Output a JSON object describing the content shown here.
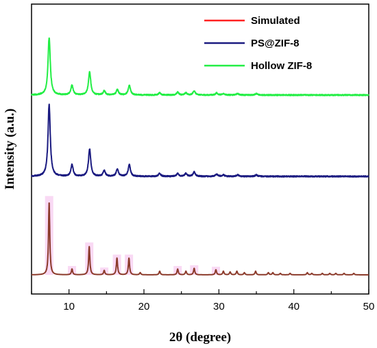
{
  "chart_data": {
    "type": "line",
    "title": "",
    "xlabel": "2θ (degree)",
    "ylabel": "Intensity (a.u.)",
    "xlim": [
      5,
      50
    ],
    "x_ticks": [
      10,
      20,
      30,
      40,
      50
    ],
    "x_tick_labels": [
      "10",
      "20",
      "30",
      "40",
      "50"
    ],
    "y_ticks_shown": false,
    "grid": false,
    "legend_position": "top-right",
    "series": [
      {
        "name": "Simulated",
        "color": "#ff2020",
        "line_color": "#8b3a2a",
        "fill_color": "#f7c9f0",
        "baseline": 0.0,
        "noise": 0.0,
        "peaks": [
          {
            "x": 7.35,
            "h": 1.0
          },
          {
            "x": 10.4,
            "h": 0.08
          },
          {
            "x": 12.7,
            "h": 0.39
          },
          {
            "x": 14.7,
            "h": 0.06
          },
          {
            "x": 16.4,
            "h": 0.23
          },
          {
            "x": 18.0,
            "h": 0.23
          },
          {
            "x": 19.5,
            "h": 0.03
          },
          {
            "x": 22.1,
            "h": 0.05
          },
          {
            "x": 24.5,
            "h": 0.08
          },
          {
            "x": 25.6,
            "h": 0.05
          },
          {
            "x": 26.7,
            "h": 0.09
          },
          {
            "x": 29.6,
            "h": 0.07
          },
          {
            "x": 30.6,
            "h": 0.05
          },
          {
            "x": 31.5,
            "h": 0.04
          },
          {
            "x": 32.4,
            "h": 0.05
          },
          {
            "x": 33.4,
            "h": 0.03
          },
          {
            "x": 34.9,
            "h": 0.05
          },
          {
            "x": 36.6,
            "h": 0.03
          },
          {
            "x": 37.2,
            "h": 0.03
          },
          {
            "x": 38.2,
            "h": 0.02
          },
          {
            "x": 39.5,
            "h": 0.02
          },
          {
            "x": 41.8,
            "h": 0.03
          },
          {
            "x": 42.4,
            "h": 0.02
          },
          {
            "x": 43.8,
            "h": 0.02
          },
          {
            "x": 44.8,
            "h": 0.02
          },
          {
            "x": 45.6,
            "h": 0.02
          },
          {
            "x": 46.7,
            "h": 0.02
          },
          {
            "x": 48.0,
            "h": 0.02
          }
        ]
      },
      {
        "name": "PS@ZIF-8",
        "color": "#1a1a80",
        "baseline": 0.0,
        "noise": 0.004,
        "peaks": [
          {
            "x": 7.35,
            "h": 0.5
          },
          {
            "x": 10.4,
            "h": 0.08
          },
          {
            "x": 12.75,
            "h": 0.19
          },
          {
            "x": 14.7,
            "h": 0.04
          },
          {
            "x": 16.45,
            "h": 0.05
          },
          {
            "x": 18.05,
            "h": 0.08
          },
          {
            "x": 22.1,
            "h": 0.02
          },
          {
            "x": 24.5,
            "h": 0.02
          },
          {
            "x": 25.6,
            "h": 0.02
          },
          {
            "x": 26.7,
            "h": 0.03
          },
          {
            "x": 29.7,
            "h": 0.015
          },
          {
            "x": 30.6,
            "h": 0.01
          },
          {
            "x": 32.5,
            "h": 0.01
          },
          {
            "x": 35.0,
            "h": 0.01
          }
        ]
      },
      {
        "name": "Hollow ZIF-8",
        "color": "#22ee44",
        "baseline": 0.0,
        "noise": 0.004,
        "peaks": [
          {
            "x": 7.35,
            "h": 0.42
          },
          {
            "x": 10.4,
            "h": 0.07
          },
          {
            "x": 12.75,
            "h": 0.17
          },
          {
            "x": 14.7,
            "h": 0.03
          },
          {
            "x": 16.45,
            "h": 0.04
          },
          {
            "x": 18.05,
            "h": 0.07
          },
          {
            "x": 22.1,
            "h": 0.015
          },
          {
            "x": 24.5,
            "h": 0.02
          },
          {
            "x": 25.6,
            "h": 0.015
          },
          {
            "x": 26.7,
            "h": 0.03
          },
          {
            "x": 29.7,
            "h": 0.015
          },
          {
            "x": 30.6,
            "h": 0.01
          },
          {
            "x": 32.5,
            "h": 0.01
          },
          {
            "x": 35.0,
            "h": 0.01
          }
        ]
      }
    ]
  }
}
